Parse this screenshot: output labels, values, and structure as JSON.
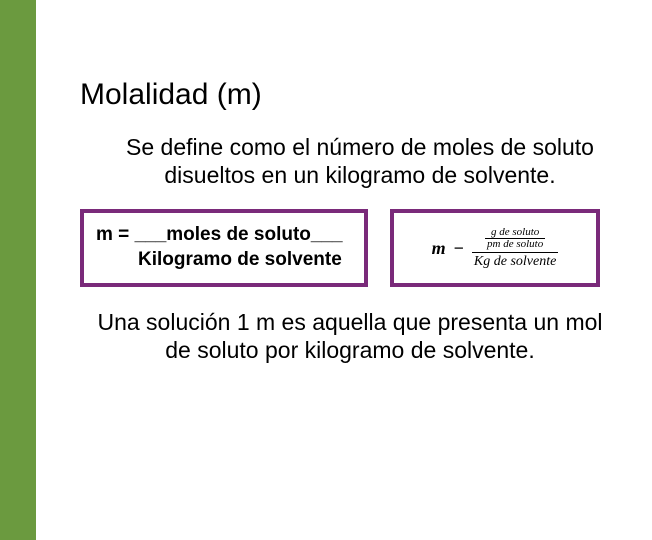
{
  "colors": {
    "sidebar": "#6b9a3f",
    "box_border": "#7a2a7a",
    "text": "#000000",
    "background": "#ffffff"
  },
  "title": "Molalidad (m)",
  "definition": "Se define como el número de moles de soluto disueltos en un kilogramo de solvente.",
  "formula1": {
    "prefix": "m = ",
    "numerator": "___moles de soluto___",
    "denominator": "Kilogramo de solvente"
  },
  "formula2": {
    "variable": "m",
    "operator": "−",
    "inner_num": "g de soluto",
    "inner_den": "pm de soluto",
    "outer_den": "Kg de solvente"
  },
  "closing": "Una solución 1 m es aquella que presenta un mol de soluto por kilogramo de solvente."
}
